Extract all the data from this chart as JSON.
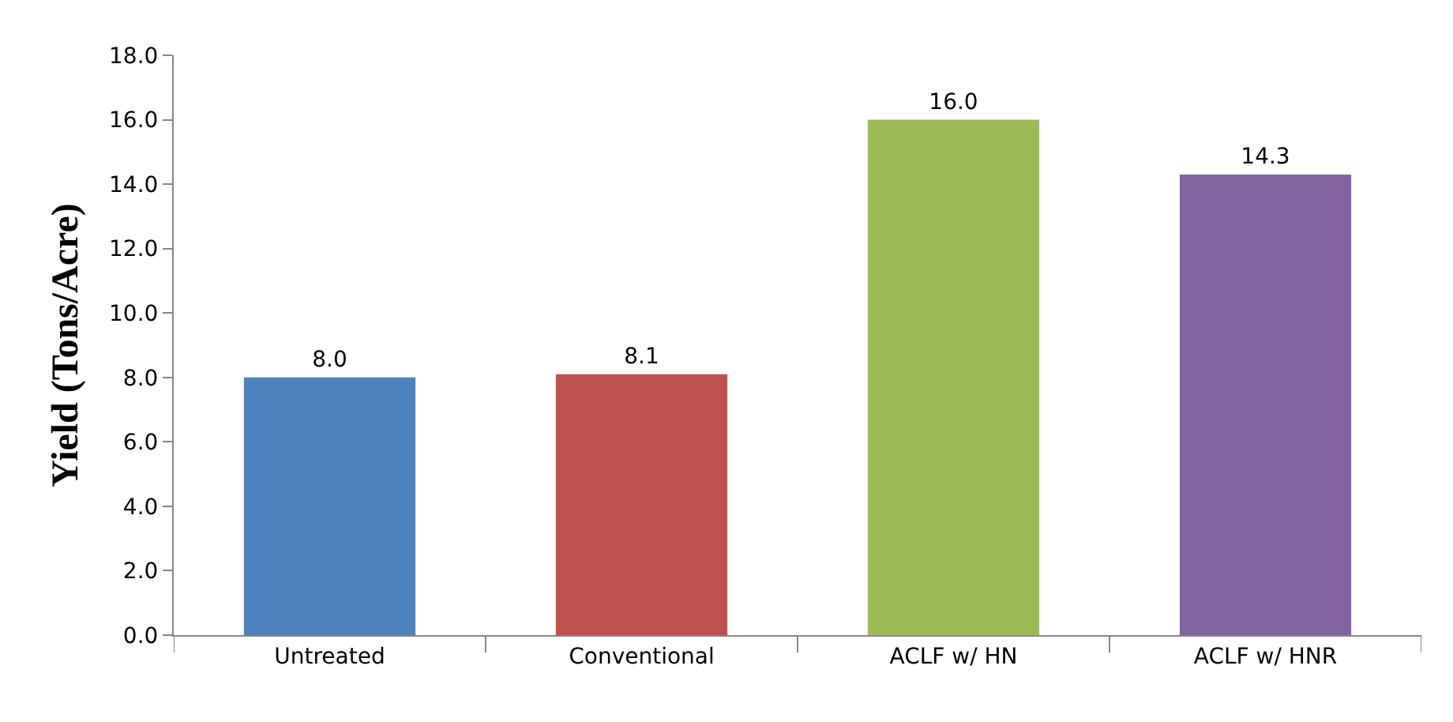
{
  "chart_data": {
    "type": "bar",
    "ylabel": "Yield (Tons/Acre)",
    "categories": [
      "Untreated",
      "Conventional",
      "ACLF w/ HN",
      "ACLF w/ HNR"
    ],
    "values": [
      8.0,
      8.1,
      16.0,
      14.3
    ],
    "colors": [
      "#4f81bd",
      "#c0504d",
      "#9bbb59",
      "#8064a2"
    ],
    "ylim": [
      0,
      18
    ],
    "yticks": [
      {
        "value": 0,
        "label": "0.0"
      },
      {
        "value": 2,
        "label": "2.0"
      },
      {
        "value": 4,
        "label": "4.0"
      },
      {
        "value": 6,
        "label": "6.0"
      },
      {
        "value": 8,
        "label": "8.0"
      },
      {
        "value": 10,
        "label": "10.0"
      },
      {
        "value": 12,
        "label": "12.0"
      },
      {
        "value": 14,
        "label": "14.0"
      },
      {
        "value": 16,
        "label": "16.0"
      },
      {
        "value": 18,
        "label": "18.0"
      }
    ],
    "value_labels": [
      "8.0",
      "8.1",
      "16.0",
      "14.3"
    ]
  }
}
